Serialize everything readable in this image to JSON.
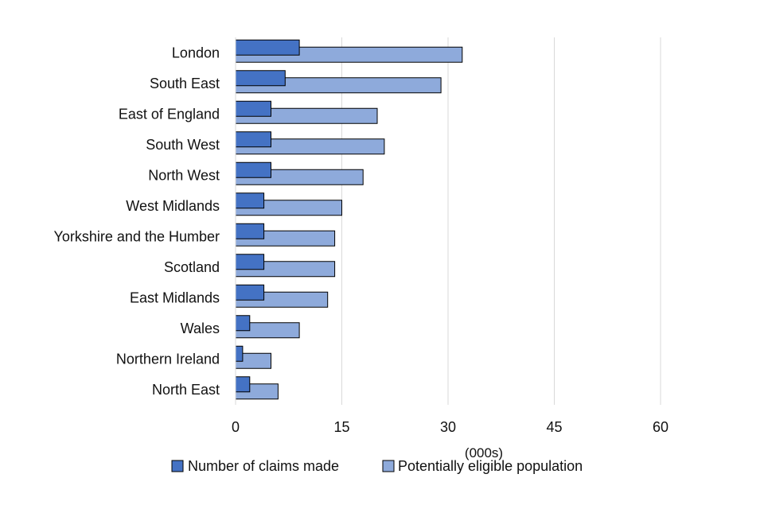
{
  "chart_data": {
    "type": "bar",
    "orientation": "horizontal",
    "layout": "overlapping",
    "categories": [
      "London",
      "South East",
      "East of England",
      "South West",
      "North West",
      "West Midlands",
      "Yorkshire and the Humber",
      "Scotland",
      "East Midlands",
      "Wales",
      "Northern Ireland",
      "North East"
    ],
    "series": [
      {
        "name": "Potentially eligible population",
        "color": "#8eaadb",
        "values": [
          32,
          29,
          20,
          21,
          18,
          15,
          14,
          14,
          13,
          9,
          5,
          6
        ]
      },
      {
        "name": "Number of claims made",
        "color": "#4472c4",
        "values": [
          9,
          7,
          5,
          5,
          5,
          4,
          4,
          4,
          4,
          2,
          1,
          2
        ]
      }
    ],
    "xlabel": "(000s)",
    "xlim": [
      0,
      60
    ],
    "xticks": [
      0,
      15,
      30,
      45,
      60
    ],
    "grid": "vertical",
    "legend": {
      "placement": "bottom",
      "order": [
        "Number of claims made",
        "Potentially eligible population"
      ]
    }
  }
}
